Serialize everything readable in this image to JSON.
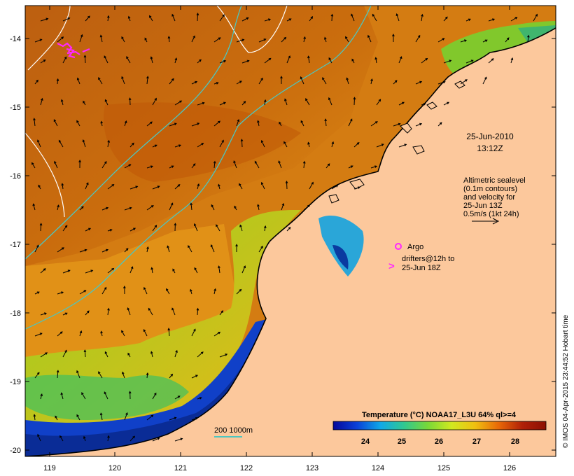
{
  "map": {
    "lon_ticks": [
      "119",
      "120",
      "121",
      "122",
      "123",
      "124",
      "125",
      "126"
    ],
    "lat_ticks": [
      "-14",
      "-15",
      "-16",
      "-17",
      "-18",
      "-19",
      "-20"
    ],
    "datetime_line1": "25-Jun-2010",
    "datetime_line2": "13:12Z",
    "velocity_note": [
      "Altimetric sealevel",
      "(0.1m contours)",
      "and velocity for",
      "25-Jun 13Z",
      "0.5m/s (1kt 24h)"
    ],
    "argo_label": "Argo",
    "drifters_line1": "drifters@12h to",
    "drifters_line2": "25-Jun 18Z",
    "drifter_symbol": ">",
    "isobath_label": "200  1000m",
    "colorbar_title": "Temperature (°C) NOAA17_L3U 64% ql>=4",
    "colorbar_ticks": [
      "24",
      "25",
      "26",
      "27",
      "28"
    ],
    "credit": "© IMOS 04-Apr-2015 23:44:52 Hobart time",
    "colors": {
      "land": "#fcc89c",
      "sst_warm": "#c8620a",
      "sst_mid": "#e89a18",
      "sst_cool": "#9ed21c",
      "sst_cold": "#0a2c96",
      "isobath": "#4cc6c0",
      "drifter": "#ff28ff"
    },
    "colorbar_gradient": [
      "#06089a",
      "#0a40d8",
      "#10a8e8",
      "#30c890",
      "#78d838",
      "#d0e820",
      "#f0c010",
      "#e86808",
      "#b02008",
      "#8c1004"
    ]
  }
}
